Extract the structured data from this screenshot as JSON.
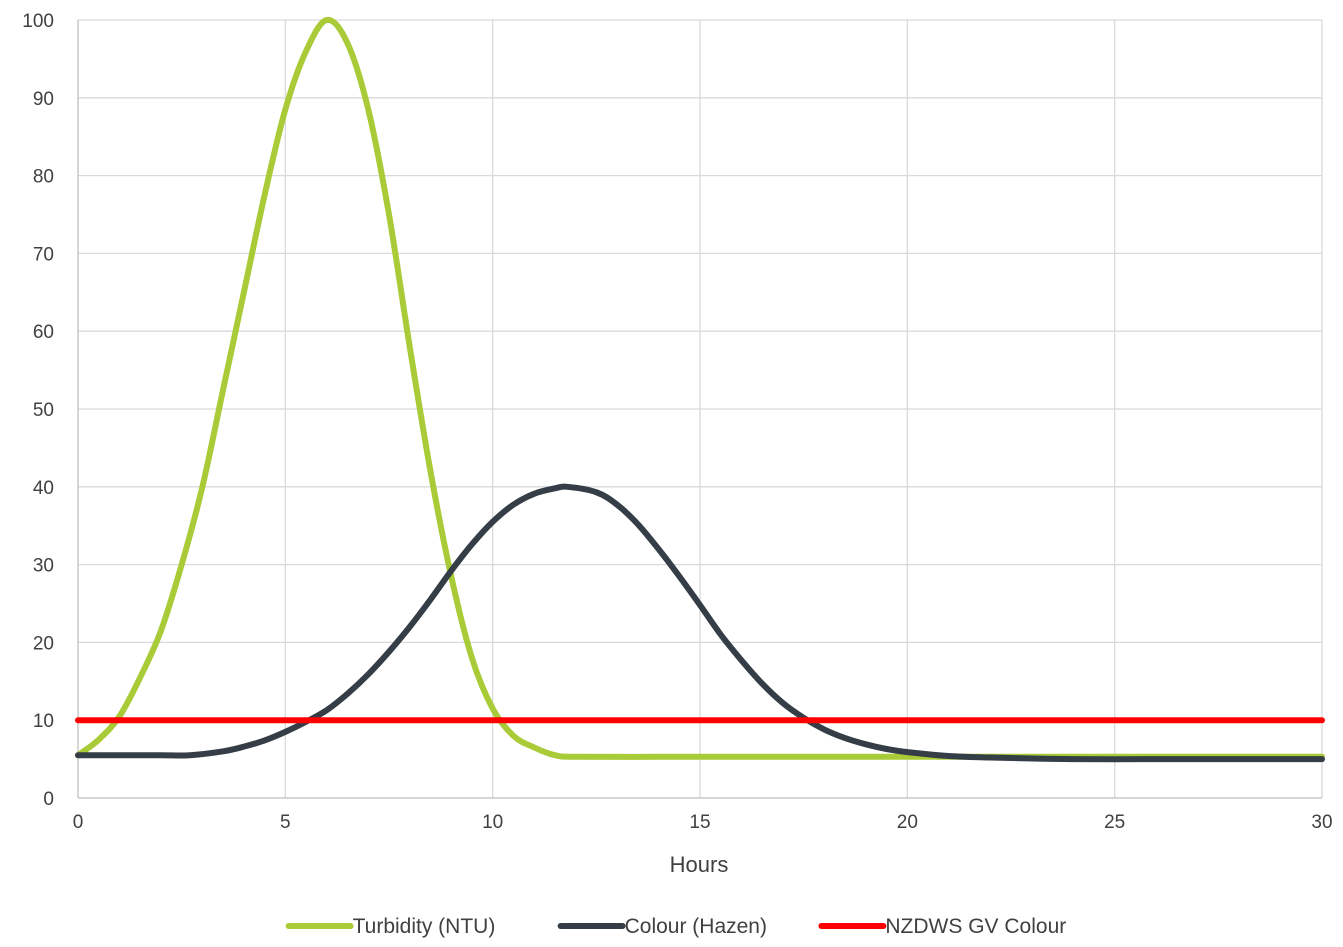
{
  "chart_data": {
    "type": "line",
    "title": "",
    "xlabel": "Hours",
    "ylabel": "",
    "xlim": [
      0,
      30
    ],
    "ylim": [
      0,
      100
    ],
    "xticks": [
      0,
      5,
      10,
      15,
      20,
      25,
      30
    ],
    "yticks": [
      0,
      10,
      20,
      30,
      40,
      50,
      60,
      70,
      80,
      90,
      100
    ],
    "grid": true,
    "legend_position": "bottom",
    "series": [
      {
        "name": "Turbidity (NTU)",
        "color": "#a9cb37",
        "x": [
          0,
          0.5,
          1,
          1.5,
          2,
          2.5,
          3,
          3.5,
          4,
          4.5,
          5,
          5.5,
          6,
          6.5,
          7,
          7.5,
          8,
          8.5,
          9,
          9.5,
          10,
          10.5,
          11,
          11.5,
          12,
          14,
          16,
          18,
          20,
          22,
          24,
          26,
          28,
          30
        ],
        "y": [
          5.5,
          7.5,
          10.5,
          15.5,
          21.5,
          30,
          40,
          52.5,
          65,
          77.5,
          88.5,
          96,
          100,
          97,
          88.5,
          75,
          58,
          42,
          28.5,
          18,
          11.5,
          8,
          6.5,
          5.5,
          5.3,
          5.3,
          5.3,
          5.3,
          5.3,
          5.3,
          5.3,
          5.3,
          5.3,
          5.3
        ]
      },
      {
        "name": "Colour (Hazen)",
        "color": "#353d47",
        "x": [
          0,
          1,
          2,
          2.7,
          3.5,
          4,
          4.5,
          5,
          5.5,
          6,
          6.5,
          7,
          7.5,
          8,
          8.5,
          9,
          9.5,
          10,
          10.5,
          11,
          11.5,
          11.8,
          12.5,
          13,
          13.5,
          14,
          14.5,
          15,
          15.5,
          16,
          16.5,
          17,
          17.5,
          18,
          18.5,
          19,
          19.5,
          20,
          21,
          22,
          24,
          26,
          28,
          30
        ],
        "y": [
          5.5,
          5.5,
          5.5,
          5.5,
          6,
          6.6,
          7.4,
          8.5,
          9.8,
          11.3,
          13.4,
          15.9,
          18.8,
          22,
          25.5,
          29.2,
          32.6,
          35.5,
          37.7,
          39.1,
          39.8,
          40,
          39.3,
          37.7,
          35.2,
          32,
          28.5,
          24.8,
          21,
          17.7,
          14.7,
          12.2,
          10.3,
          8.8,
          7.7,
          6.9,
          6.3,
          5.9,
          5.4,
          5.2,
          5,
          5,
          5,
          5
        ]
      },
      {
        "name": "NZDWS GV Colour",
        "color": "#ff0000",
        "x": [
          0,
          30
        ],
        "y": [
          10,
          10
        ]
      }
    ]
  }
}
